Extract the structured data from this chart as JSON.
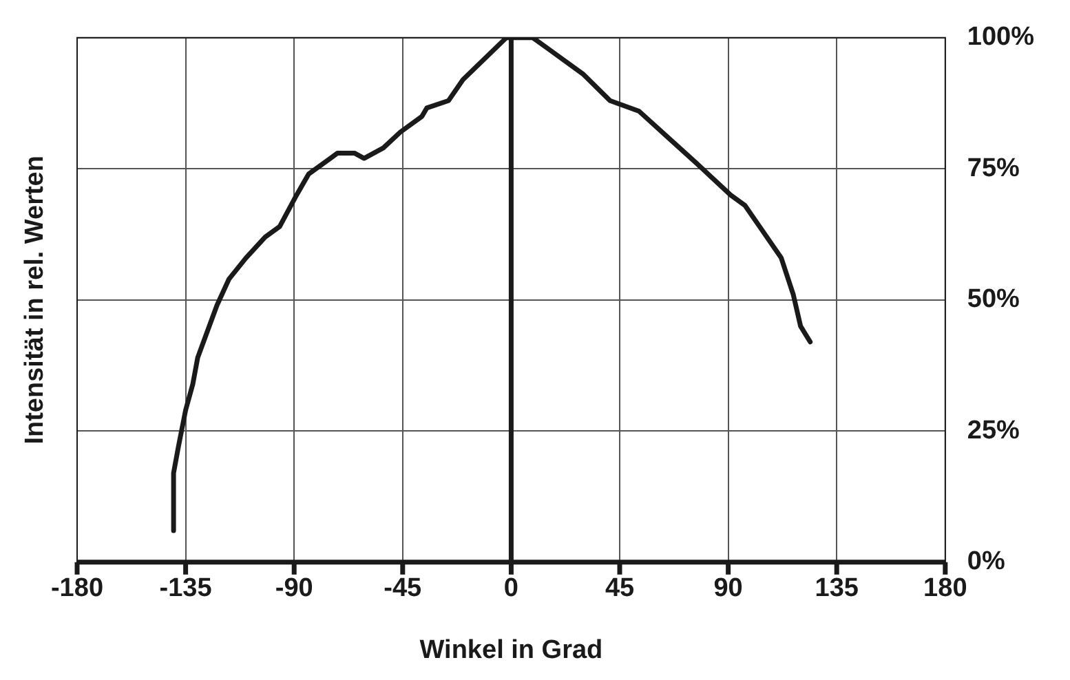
{
  "chart_data": {
    "type": "line",
    "xlabel": "Winkel in Grad",
    "ylabel": "Intensität in rel. Werten",
    "x": [
      -140,
      -140,
      -138,
      -135,
      -132,
      -130,
      -126,
      -122,
      -117,
      -110,
      -102,
      -96,
      -89,
      -84,
      -75,
      -72,
      -65,
      -61,
      -53,
      -46,
      -37,
      -35,
      -26,
      -20,
      -11,
      -2,
      9,
      15,
      30,
      41,
      53,
      65,
      77,
      91,
      97,
      103,
      112,
      117,
      120,
      124
    ],
    "series": [
      {
        "color": "#1a1a1a",
        "values": [
          6,
          17,
          22,
          29,
          34,
          39,
          44,
          49,
          54,
          58,
          62,
          64,
          70,
          74,
          77,
          78,
          78,
          77,
          79,
          82,
          85,
          86.6,
          88,
          92,
          96,
          100,
          100,
          98,
          93,
          88,
          86,
          81,
          76,
          70,
          68,
          64,
          58,
          51,
          45,
          42
        ]
      }
    ],
    "xlim": [
      -180,
      180
    ],
    "xticks": [
      -180,
      -135,
      -90,
      -45,
      0,
      45,
      90,
      135,
      180
    ],
    "ylim": [
      0,
      100
    ],
    "yticks": [
      {
        "value": 0,
        "label": "0%"
      },
      {
        "value": 25,
        "label": "25%"
      },
      {
        "value": 50,
        "label": "50%"
      },
      {
        "value": 75,
        "label": "75%"
      },
      {
        "value": 100,
        "label": "100%"
      }
    ],
    "ref_lines": [
      {
        "axis": "x",
        "value": 0,
        "color": "#1a1a1a"
      }
    ],
    "grid": true,
    "legend": false,
    "marker": "none",
    "line_style": "solid"
  }
}
